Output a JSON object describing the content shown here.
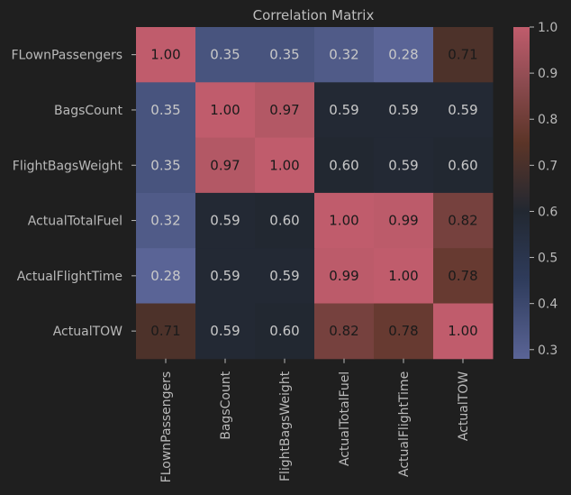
{
  "chart_data": {
    "type": "heatmap",
    "title": "Correlation Matrix",
    "labels": [
      "FLownPassengers",
      "BagsCount",
      "FlightBagsWeight",
      "ActualTotalFuel",
      "ActualFlightTime",
      "ActualTOW"
    ],
    "matrix": [
      [
        1.0,
        0.35,
        0.35,
        0.32,
        0.28,
        0.71
      ],
      [
        0.35,
        1.0,
        0.97,
        0.59,
        0.59,
        0.59
      ],
      [
        0.35,
        0.97,
        1.0,
        0.6,
        0.59,
        0.6
      ],
      [
        0.32,
        0.59,
        0.6,
        1.0,
        0.99,
        0.82
      ],
      [
        0.28,
        0.59,
        0.59,
        0.99,
        1.0,
        0.78
      ],
      [
        0.71,
        0.59,
        0.6,
        0.82,
        0.78,
        1.0
      ]
    ],
    "value_format": "2 decimals",
    "colorbar": {
      "range": [
        0.28,
        1.0
      ],
      "ticks": [
        0.3,
        0.4,
        0.5,
        0.6,
        0.7,
        0.8,
        0.9,
        1.0
      ],
      "stops": [
        {
          "value": 0.28,
          "color": "#5a6496"
        },
        {
          "value": 0.45,
          "color": "#2f3c5c"
        },
        {
          "value": 0.6,
          "color": "#222831"
        },
        {
          "value": 0.75,
          "color": "#5c3528"
        },
        {
          "value": 0.88,
          "color": "#8c4b50"
        },
        {
          "value": 1.0,
          "color": "#c05c6c"
        }
      ]
    },
    "text_color_dark": "#1a1a1a",
    "text_color_light": "#c8c8c8",
    "background": "#1f1f1f",
    "axis_text_color": "#b9b9b9"
  }
}
